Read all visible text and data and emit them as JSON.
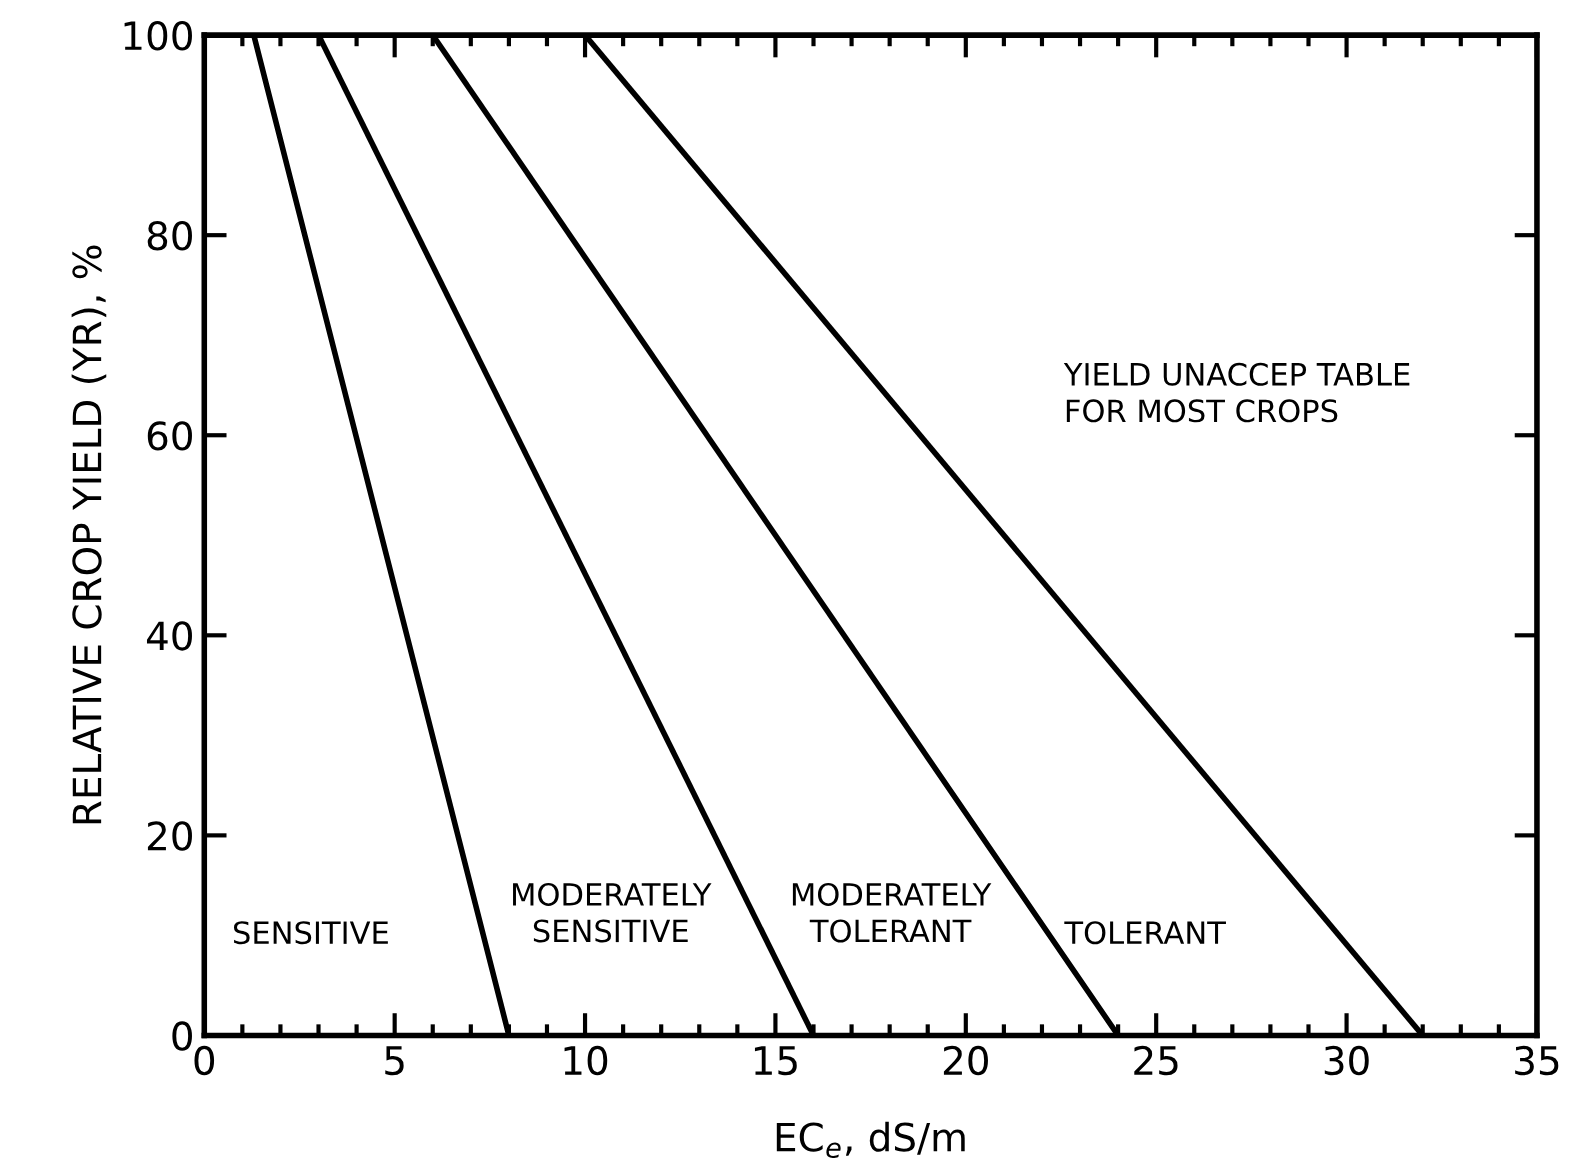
{
  "chart_data": {
    "type": "line",
    "xlabel": "EC$_{e}$, dS/m",
    "ylabel": "RELATIVE CROP YIELD (YR), %",
    "series": [
      {
        "x": [
          1.3,
          8
        ],
        "values": [
          100,
          0
        ],
        "color": "#000000"
      },
      {
        "x": [
          3,
          16
        ],
        "values": [
          100,
          0
        ],
        "color": "#000000"
      },
      {
        "x": [
          6,
          24
        ],
        "values": [
          100,
          0
        ],
        "color": "#000000"
      },
      {
        "x": [
          10,
          32
        ],
        "values": [
          100,
          0
        ],
        "color": "#000000"
      }
    ],
    "annotations": [
      "SENSITIVE",
      "MODERATELY\nSENSITIVE",
      "MODERATELY\nTOLERANT",
      "TOLERANT",
      "YIELD UNACCEP TABLE\nFOR MOST CROPS"
    ],
    "xlim": [
      0,
      35
    ],
    "ylim": [
      0,
      100
    ],
    "xticks": [
      0,
      5,
      10,
      15,
      20,
      25,
      30,
      35
    ],
    "yticks": [
      0,
      20,
      40,
      60,
      80,
      100
    ],
    "grid": false,
    "legend": false,
    "marker": "none",
    "line_style": "solid"
  }
}
